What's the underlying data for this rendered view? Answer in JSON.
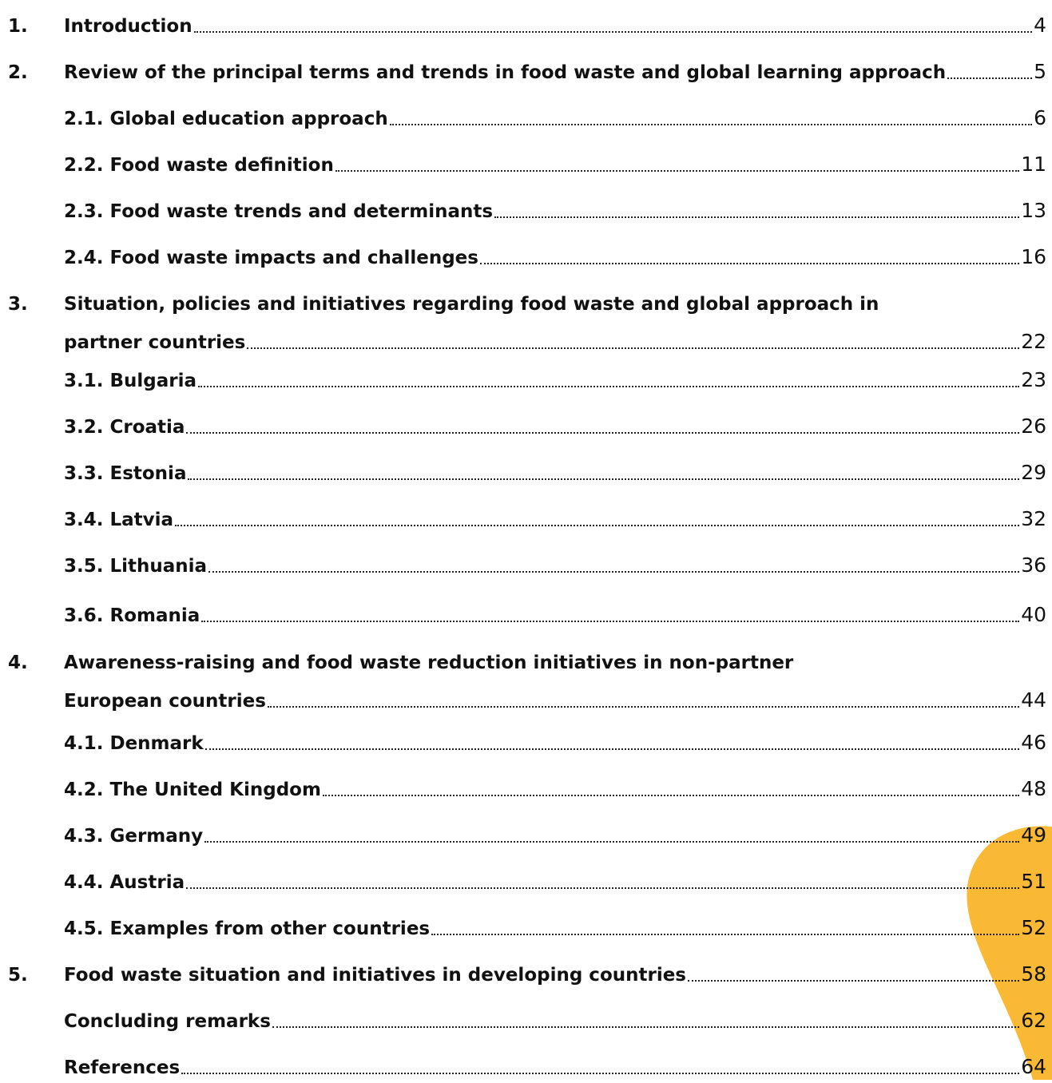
{
  "toc": {
    "entries": [
      {
        "number": "1.",
        "lines": [
          "Introduction"
        ],
        "page": "4"
      },
      {
        "number": "2.",
        "lines": [
          "Review of the principal terms and trends in food waste and global learning approach"
        ],
        "page": "5"
      },
      {
        "lines": [
          "2.1. Global education approach"
        ],
        "page": "6"
      },
      {
        "lines": [
          "2.2. Food waste definition"
        ],
        "page": "11"
      },
      {
        "lines": [
          "2.3. Food waste trends and determinants"
        ],
        "page": "13"
      },
      {
        "lines": [
          "2.4. Food waste impacts and challenges"
        ],
        "page": "16"
      },
      {
        "number": "3.",
        "lines": [
          "Situation, policies and initiatives regarding food waste and global approach in",
          "partner countries"
        ],
        "page": "22"
      },
      {
        "lines": [
          "3.1. Bulgaria"
        ],
        "page": "23"
      },
      {
        "lines": [
          "3.2. Croatia"
        ],
        "page": "26"
      },
      {
        "lines": [
          "3.3. Estonia"
        ],
        "page": "29"
      },
      {
        "lines": [
          "3.4. Latvia"
        ],
        "page": "32"
      },
      {
        "lines": [
          "3.5. Lithuania"
        ],
        "page": "36"
      },
      {
        "lines": [
          "3.6. Romania"
        ],
        "page": "40"
      },
      {
        "number": "4.",
        "lines": [
          "Awareness-raising and food waste reduction initiatives in non-partner",
          "European countries"
        ],
        "page": "44"
      },
      {
        "lines": [
          "4.1. Denmark"
        ],
        "page": "46"
      },
      {
        "lines": [
          "4.2. The United Kingdom"
        ],
        "page": "48"
      },
      {
        "lines": [
          "4.3. Germany"
        ],
        "page": "49"
      },
      {
        "lines": [
          "4.4. Austria"
        ],
        "page": "51"
      },
      {
        "lines": [
          "4.5. Examples from other countries"
        ],
        "page": "52"
      },
      {
        "number": "5.",
        "lines": [
          "Food waste situation and initiatives in developing countries"
        ],
        "page": "58"
      },
      {
        "lines": [
          "Concluding remarks"
        ],
        "page": "62"
      },
      {
        "lines": [
          "References"
        ],
        "page": "64"
      }
    ]
  }
}
